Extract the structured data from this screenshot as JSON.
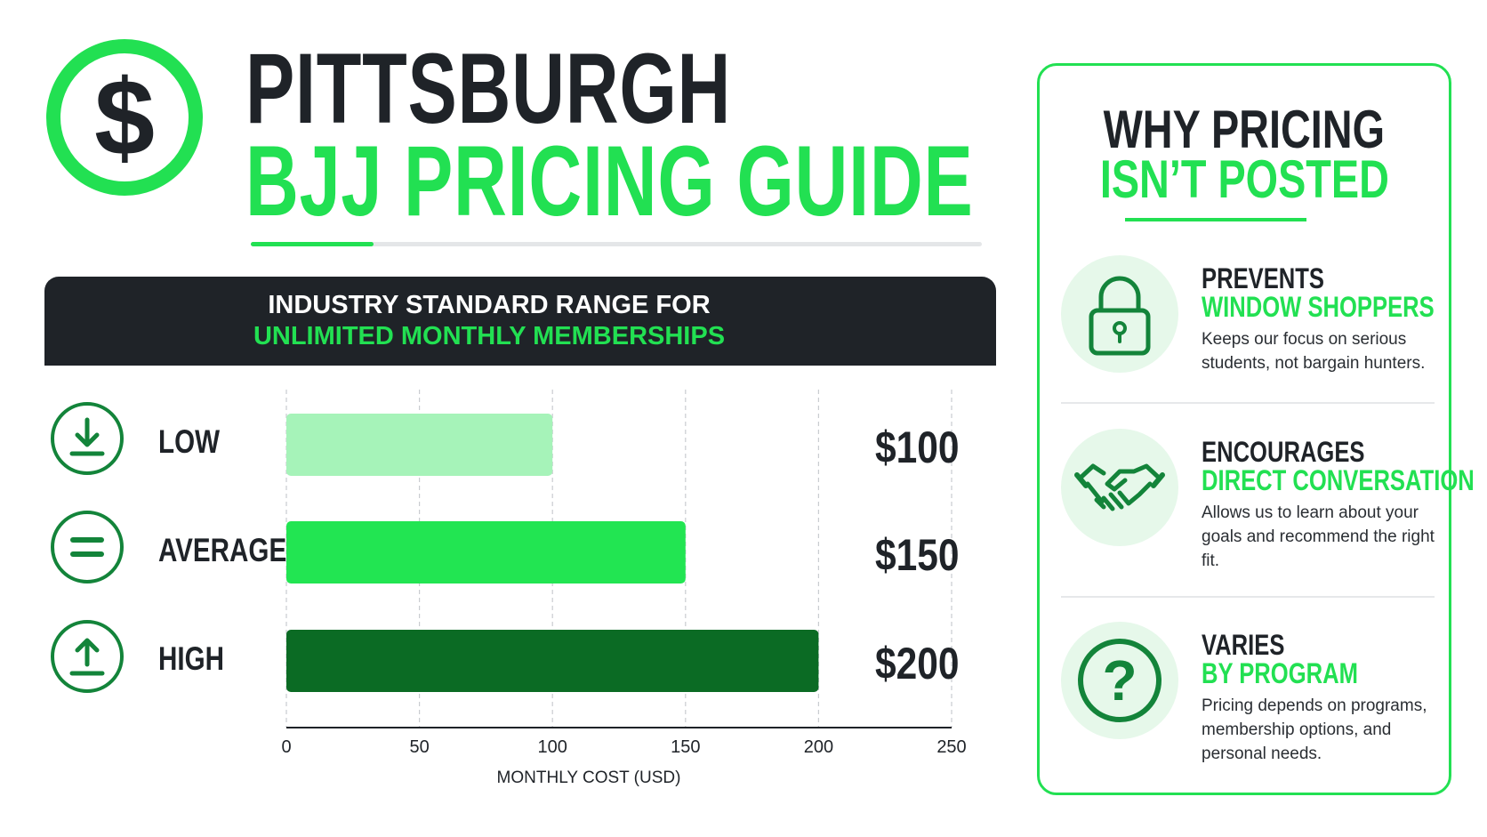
{
  "header": {
    "title_line1": "PITTSBURGH",
    "title_line2": "BJJ PRICING GUIDE",
    "logo_icon": "dollar-sign-icon"
  },
  "banner": {
    "line1": "INDUSTRY STANDARD RANGE FOR",
    "line2": "UNLIMITED MONTHLY MEMBERSHIPS"
  },
  "colors": {
    "accent": "#22e052",
    "dark": "#1f2328",
    "low_bar": "#a6f3b9",
    "average_bar": "#22e552",
    "high_bar": "#0b6b24",
    "icon_green": "#13843a"
  },
  "chart_data": {
    "type": "bar",
    "orientation": "horizontal",
    "categories": [
      "LOW",
      "AVERAGE",
      "HIGH"
    ],
    "values": [
      100,
      150,
      200
    ],
    "value_labels": [
      "$100",
      "$150",
      "$200"
    ],
    "category_icons": [
      "download-icon",
      "equals-icon",
      "upload-icon"
    ],
    "xlabel": "MONTHLY COST (USD)",
    "xlim": [
      0,
      250
    ],
    "xticks": [
      "0",
      "50",
      "100",
      "150",
      "200",
      "250"
    ],
    "grid": true
  },
  "panel": {
    "title_line1": "WHY PRICING",
    "title_line2": "ISN’T POSTED",
    "reasons": [
      {
        "icon": "padlock-icon",
        "head1": "PREVENTS",
        "head2": "WINDOW SHOPPERS",
        "desc": "Keeps our focus on serious students, not bargain hunters."
      },
      {
        "icon": "handshake-icon",
        "head1": "ENCOURAGES",
        "head2": "DIRECT CONVERSATION",
        "desc": "Allows us to learn about your goals and recommend the right fit."
      },
      {
        "icon": "question-mark-icon",
        "head1": "VARIES",
        "head2": "BY PROGRAM",
        "desc": "Pricing depends on programs, membership options, and personal needs."
      }
    ]
  }
}
